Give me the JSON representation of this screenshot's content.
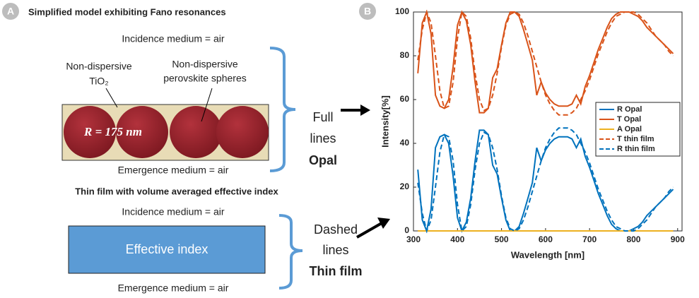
{
  "panel_a": {
    "label": "A",
    "title": "Simplified model exhibiting Fano resonances",
    "opal": {
      "incidence": "Incidence medium = air",
      "tio2_line1": "Non-dispersive",
      "tio2_line2": "TiO₂",
      "spheres_line1": "Non-dispersive",
      "spheres_line2": "perovskite spheres",
      "radius": "R = 175 nm",
      "emergence": "Emergence medium = air",
      "note_line1": "Full",
      "note_line2": "lines",
      "note_line3": "Opal"
    },
    "thin_film": {
      "title": "Thin film with volume averaged effective index",
      "incidence": "Incidence medium = air",
      "box": "Effective index",
      "emergence": "Emergence medium = air",
      "note_line1": "Dashed",
      "note_line2": "lines",
      "note_line3": "Thin film"
    }
  },
  "chart_data": {
    "type": "line",
    "panel_label": "B",
    "x_label": "Wavelength [nm]",
    "y_label": "Intensity[%]",
    "x": [
      310,
      320,
      330,
      340,
      350,
      360,
      370,
      380,
      390,
      400,
      410,
      420,
      430,
      440,
      450,
      460,
      470,
      480,
      490,
      500,
      510,
      520,
      530,
      540,
      550,
      560,
      570,
      580,
      590,
      600,
      610,
      620,
      630,
      640,
      650,
      660,
      670,
      680,
      690,
      700,
      710,
      720,
      730,
      740,
      750,
      760,
      770,
      780,
      790,
      800,
      810,
      820,
      830,
      840,
      850,
      860,
      870,
      880,
      890
    ],
    "xlim": [
      300,
      910
    ],
    "xticks": [
      300,
      400,
      500,
      600,
      700,
      800,
      900
    ],
    "ylim": [
      0,
      100
    ],
    "yticks": [
      0,
      20,
      40,
      60,
      80,
      100
    ],
    "legend": "right",
    "series": [
      {
        "name": "R Opal",
        "color": "#0072bd",
        "style": "solid",
        "values": [
          28,
          5,
          0,
          10,
          38,
          43,
          44,
          40,
          25,
          6,
          0,
          4,
          15,
          32,
          46,
          46,
          44,
          30,
          26,
          15,
          5,
          0,
          0,
          2,
          8,
          15,
          22,
          38,
          32,
          37,
          40,
          42,
          43,
          43,
          43,
          42,
          38,
          42,
          34,
          29,
          23,
          17,
          12,
          7,
          3,
          1,
          0,
          0,
          0,
          1,
          2,
          4,
          7,
          9,
          11,
          13,
          15,
          17,
          19
        ]
      },
      {
        "name": "T Opal",
        "color": "#d95319",
        "style": "solid",
        "values": [
          72,
          95,
          100,
          90,
          62,
          57,
          56,
          60,
          75,
          94,
          100,
          96,
          85,
          68,
          54,
          54,
          56,
          70,
          74,
          85,
          95,
          100,
          100,
          98,
          92,
          85,
          78,
          62,
          68,
          63,
          60,
          58,
          57,
          57,
          57,
          58,
          62,
          58,
          66,
          71,
          77,
          83,
          88,
          93,
          97,
          99,
          100,
          100,
          100,
          99,
          98,
          96,
          93,
          91,
          89,
          87,
          85,
          83,
          81
        ]
      },
      {
        "name": "A Opal",
        "color": "#edb120",
        "style": "solid",
        "values": [
          0,
          0,
          0,
          0,
          0,
          0,
          0,
          0,
          0,
          0,
          0,
          0,
          0,
          0,
          0,
          0,
          0,
          0,
          0,
          0,
          0,
          0,
          0,
          0,
          0,
          0,
          0,
          0,
          0,
          0,
          0,
          0,
          0,
          0,
          0,
          0,
          0,
          0,
          0,
          0,
          0,
          0,
          0,
          0,
          0,
          0,
          0,
          0,
          0,
          0,
          0,
          0,
          0,
          0,
          0,
          0,
          0,
          0,
          0
        ]
      },
      {
        "name": "T thin film",
        "color": "#d95319",
        "style": "dashed",
        "values": [
          78,
          92,
          100,
          95,
          80,
          64,
          56,
          57,
          68,
          88,
          100,
          98,
          88,
          72,
          60,
          55,
          56,
          62,
          72,
          84,
          94,
          99,
          100,
          99,
          95,
          89,
          82,
          75,
          68,
          62,
          58,
          55,
          53,
          53,
          53,
          54,
          56,
          60,
          64,
          69,
          75,
          81,
          86,
          91,
          95,
          98,
          99,
          100,
          100,
          100,
          99,
          97,
          95,
          92,
          89,
          87,
          85,
          82,
          80
        ]
      },
      {
        "name": "R thin film",
        "color": "#0072bd",
        "style": "dashed",
        "values": [
          22,
          8,
          0,
          5,
          20,
          36,
          44,
          43,
          32,
          12,
          0,
          2,
          12,
          28,
          40,
          45,
          44,
          38,
          28,
          16,
          6,
          1,
          0,
          1,
          5,
          11,
          18,
          25,
          32,
          38,
          42,
          45,
          47,
          47,
          47,
          46,
          44,
          40,
          36,
          31,
          25,
          19,
          14,
          9,
          5,
          2,
          1,
          0,
          0,
          0,
          1,
          3,
          5,
          8,
          11,
          13,
          15,
          18,
          20
        ]
      }
    ]
  }
}
